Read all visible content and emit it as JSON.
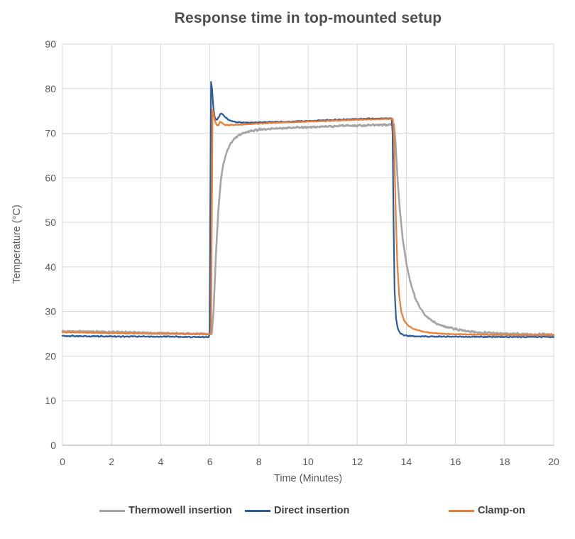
{
  "chart_data": {
    "type": "line",
    "title": "Response time in top-mounted setup",
    "xlabel": "Time (Minutes)",
    "ylabel": "Temperature (°C)",
    "xlim": [
      0,
      20
    ],
    "ylim": [
      0,
      90
    ],
    "x_ticks": [
      0,
      2,
      4,
      6,
      8,
      10,
      12,
      14,
      16,
      18,
      20
    ],
    "y_ticks": [
      0,
      10,
      20,
      30,
      40,
      50,
      60,
      70,
      80,
      90
    ],
    "grid": true,
    "legend_position": "bottom",
    "colors": {
      "grid": "#d9d9d9",
      "axis": "#bfbfbf",
      "tick_text": "#595959",
      "title_text": "#4d4d4d",
      "legend_text": "#3f3f3f",
      "background": "#ffffff"
    },
    "series": [
      {
        "name": "Thermowell insertion",
        "color": "#a5a5a5",
        "width": 2.6,
        "noise": 0.22,
        "points": [
          [
            0,
            25.6
          ],
          [
            0.5,
            25.55
          ],
          [
            1,
            25.5
          ],
          [
            1.5,
            25.45
          ],
          [
            2,
            25.4
          ],
          [
            2.5,
            25.35
          ],
          [
            3,
            25.3
          ],
          [
            3.5,
            25.2
          ],
          [
            4,
            25.15
          ],
          [
            4.5,
            25.1
          ],
          [
            5,
            25.05
          ],
          [
            5.5,
            25.0
          ],
          [
            6,
            24.95
          ],
          [
            6.08,
            25.0
          ],
          [
            6.15,
            30
          ],
          [
            6.25,
            43
          ],
          [
            6.35,
            53
          ],
          [
            6.45,
            59.5
          ],
          [
            6.55,
            63.2
          ],
          [
            6.7,
            66.0
          ],
          [
            6.85,
            67.7
          ],
          [
            7,
            68.8
          ],
          [
            7.3,
            69.9
          ],
          [
            7.6,
            70.4
          ],
          [
            8,
            70.8
          ],
          [
            8.5,
            71.0
          ],
          [
            9,
            71.15
          ],
          [
            9.5,
            71.25
          ],
          [
            10,
            71.35
          ],
          [
            10.5,
            71.45
          ],
          [
            11,
            71.55
          ],
          [
            11.5,
            71.65
          ],
          [
            12,
            71.7
          ],
          [
            12.5,
            71.8
          ],
          [
            13,
            71.85
          ],
          [
            13.5,
            71.9
          ],
          [
            13.56,
            68
          ],
          [
            13.64,
            60
          ],
          [
            13.74,
            52.5
          ],
          [
            13.85,
            46.5
          ],
          [
            14,
            40.8
          ],
          [
            14.15,
            36.9
          ],
          [
            14.35,
            33.2
          ],
          [
            14.55,
            30.9
          ],
          [
            14.8,
            29.0
          ],
          [
            15.1,
            27.7
          ],
          [
            15.5,
            26.7
          ],
          [
            16,
            26.0
          ],
          [
            16.5,
            25.6
          ],
          [
            17,
            25.3
          ],
          [
            17.5,
            25.15
          ],
          [
            18,
            25.05
          ],
          [
            18.5,
            24.95
          ],
          [
            19,
            24.9
          ],
          [
            19.5,
            24.85
          ],
          [
            20,
            24.8
          ]
        ]
      },
      {
        "name": "Direct insertion",
        "color": "#2d5ba0",
        "width": 2.2,
        "noise": 0.14,
        "points": [
          [
            0,
            24.5
          ],
          [
            0.5,
            24.5
          ],
          [
            1,
            24.45
          ],
          [
            1.5,
            24.45
          ],
          [
            2,
            24.4
          ],
          [
            2.5,
            24.4
          ],
          [
            3,
            24.4
          ],
          [
            3.5,
            24.35
          ],
          [
            4,
            24.35
          ],
          [
            4.5,
            24.35
          ],
          [
            5,
            24.3
          ],
          [
            5.5,
            24.3
          ],
          [
            5.95,
            24.3
          ],
          [
            5.99,
            25
          ],
          [
            6.02,
            55
          ],
          [
            6.05,
            81.5
          ],
          [
            6.09,
            80
          ],
          [
            6.14,
            76
          ],
          [
            6.2,
            73.5
          ],
          [
            6.28,
            72.9
          ],
          [
            6.36,
            73.6
          ],
          [
            6.44,
            74.4
          ],
          [
            6.52,
            74.3
          ],
          [
            6.62,
            73.6
          ],
          [
            6.75,
            73.0
          ],
          [
            6.95,
            72.6
          ],
          [
            7.2,
            72.4
          ],
          [
            7.6,
            72.35
          ],
          [
            8,
            72.4
          ],
          [
            8.5,
            72.5
          ],
          [
            9,
            72.55
          ],
          [
            9.5,
            72.65
          ],
          [
            10,
            72.75
          ],
          [
            10.5,
            72.85
          ],
          [
            11,
            72.95
          ],
          [
            11.5,
            73.05
          ],
          [
            12,
            73.15
          ],
          [
            12.5,
            73.25
          ],
          [
            13,
            73.3
          ],
          [
            13.4,
            73.35
          ],
          [
            13.44,
            70
          ],
          [
            13.48,
            50
          ],
          [
            13.52,
            35
          ],
          [
            13.58,
            28.5
          ],
          [
            13.66,
            26
          ],
          [
            13.76,
            25.1
          ],
          [
            13.9,
            24.7
          ],
          [
            14.1,
            24.5
          ],
          [
            14.5,
            24.4
          ],
          [
            15,
            24.4
          ],
          [
            15.5,
            24.35
          ],
          [
            16,
            24.35
          ],
          [
            17,
            24.3
          ],
          [
            18,
            24.3
          ],
          [
            19,
            24.3
          ],
          [
            20,
            24.3
          ]
        ]
      },
      {
        "name": "Clamp-on",
        "color": "#ed7d31",
        "width": 2.2,
        "noise": 0.1,
        "points": [
          [
            0,
            25.35
          ],
          [
            0.5,
            25.3
          ],
          [
            1,
            25.25
          ],
          [
            1.5,
            25.2
          ],
          [
            2,
            25.15
          ],
          [
            2.5,
            25.1
          ],
          [
            3,
            25.1
          ],
          [
            3.5,
            25.05
          ],
          [
            4,
            25.0
          ],
          [
            4.5,
            25.0
          ],
          [
            5,
            24.95
          ],
          [
            5.5,
            24.95
          ],
          [
            6,
            24.9
          ],
          [
            6.05,
            25.5
          ],
          [
            6.08,
            50
          ],
          [
            6.11,
            75.3
          ],
          [
            6.15,
            74.5
          ],
          [
            6.2,
            72.8
          ],
          [
            6.27,
            71.9
          ],
          [
            6.35,
            71.8
          ],
          [
            6.42,
            72.6
          ],
          [
            6.5,
            72.3
          ],
          [
            6.6,
            71.9
          ],
          [
            6.75,
            71.8
          ],
          [
            7,
            71.85
          ],
          [
            7.5,
            72.0
          ],
          [
            8,
            72.15
          ],
          [
            8.5,
            72.3
          ],
          [
            9,
            72.4
          ],
          [
            9.5,
            72.5
          ],
          [
            10,
            72.6
          ],
          [
            10.5,
            72.7
          ],
          [
            11,
            72.8
          ],
          [
            11.5,
            72.9
          ],
          [
            12,
            73.0
          ],
          [
            12.5,
            73.1
          ],
          [
            13,
            73.15
          ],
          [
            13.45,
            73.2
          ],
          [
            13.5,
            68
          ],
          [
            13.56,
            54
          ],
          [
            13.63,
            41
          ],
          [
            13.71,
            33.5
          ],
          [
            13.8,
            29.8
          ],
          [
            13.92,
            27.9
          ],
          [
            14.08,
            26.8
          ],
          [
            14.3,
            26.1
          ],
          [
            14.6,
            25.6
          ],
          [
            15,
            25.2
          ],
          [
            15.5,
            25.0
          ],
          [
            16,
            24.9
          ],
          [
            16.5,
            24.85
          ],
          [
            17,
            24.8
          ],
          [
            18,
            24.75
          ],
          [
            19,
            24.7
          ],
          [
            20,
            24.7
          ]
        ]
      }
    ]
  }
}
